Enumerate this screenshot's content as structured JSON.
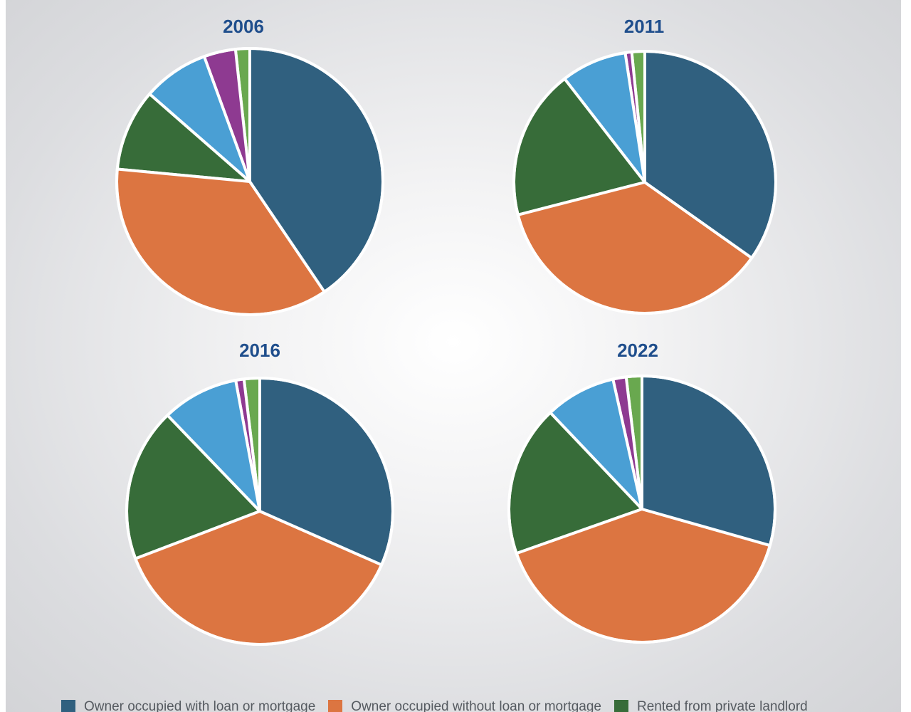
{
  "colors": {
    "owner_with_loan": "#30607f",
    "owner_without_loan": "#dc7541",
    "rented_private": "#376c39",
    "rented_other_1": "#4a9fd4",
    "rented_other_2": "#8e3a91",
    "rented_other_3": "#69a84f"
  },
  "chart_data": [
    {
      "type": "pie",
      "title": "2006",
      "slices": [
        {
          "label": "Owner occupied with loan or mortgage",
          "value": 40.0,
          "color": "#30607f"
        },
        {
          "label": "Owner occupied without loan or mortgage",
          "value": 35.5,
          "color": "#dc7541"
        },
        {
          "label": "Rented from private landlord",
          "value": 9.8,
          "color": "#376c39"
        },
        {
          "label": "",
          "value": 7.9,
          "color": "#4a9fd4"
        },
        {
          "label": "",
          "value": 3.8,
          "color": "#8e3a91"
        },
        {
          "label": "",
          "value": 1.7,
          "color": "#69a84f"
        }
      ]
    },
    {
      "type": "pie",
      "title": "2011",
      "slices": [
        {
          "label": "Owner occupied with loan or mortgage",
          "value": 34.8,
          "color": "#30607f"
        },
        {
          "label": "Owner occupied without loan or mortgage",
          "value": 36.2,
          "color": "#dc7541"
        },
        {
          "label": "Rented from private landlord",
          "value": 18.5,
          "color": "#376c39"
        },
        {
          "label": "",
          "value": 8.1,
          "color": "#4a9fd4"
        },
        {
          "label": "",
          "value": 0.8,
          "color": "#8e3a91"
        },
        {
          "label": "",
          "value": 1.6,
          "color": "#69a84f"
        }
      ]
    },
    {
      "type": "pie",
      "title": "2016",
      "slices": [
        {
          "label": "Owner occupied with loan or mortgage",
          "value": 31.6,
          "color": "#30607f"
        },
        {
          "label": "Owner occupied without loan or mortgage",
          "value": 37.6,
          "color": "#dc7541"
        },
        {
          "label": "Rented from private landlord",
          "value": 18.6,
          "color": "#376c39"
        },
        {
          "label": "",
          "value": 9.3,
          "color": "#4a9fd4"
        },
        {
          "label": "",
          "value": 1.0,
          "color": "#8e3a91"
        },
        {
          "label": "",
          "value": 1.9,
          "color": "#69a84f"
        }
      ]
    },
    {
      "type": "pie",
      "title": "2022",
      "slices": [
        {
          "label": "Owner occupied with loan or mortgage",
          "value": 29.4,
          "color": "#30607f"
        },
        {
          "label": "Owner occupied without loan or mortgage",
          "value": 40.2,
          "color": "#dc7541"
        },
        {
          "label": "Rented from private landlord",
          "value": 18.3,
          "color": "#376c39"
        },
        {
          "label": "",
          "value": 8.6,
          "color": "#4a9fd4"
        },
        {
          "label": "",
          "value": 1.6,
          "color": "#8e3a91"
        },
        {
          "label": "",
          "value": 1.9,
          "color": "#69a84f"
        }
      ]
    }
  ],
  "legend": [
    {
      "label": "Owner occupied with loan or mortgage",
      "color": "#30607f"
    },
    {
      "label": "Owner occupied without loan or mortgage",
      "color": "#dc7541"
    },
    {
      "label": "Rented from private landlord",
      "color": "#376c39"
    }
  ]
}
